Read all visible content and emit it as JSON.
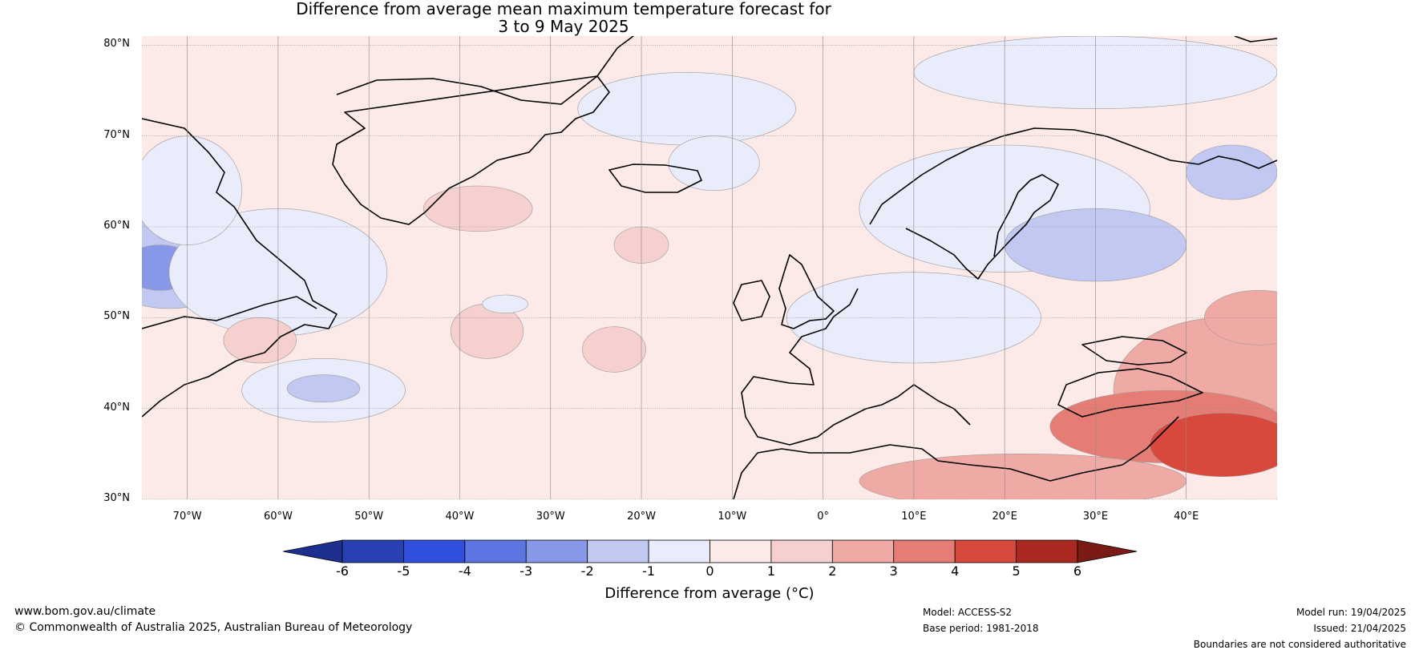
{
  "title_line1": "Difference from average mean maximum temperature forecast for",
  "title_line2": "3 to 9 May 2025",
  "map": {
    "lon_range": [
      -75,
      50
    ],
    "lat_range": [
      30,
      81
    ],
    "lat_ticks": [
      {
        "lat": 80,
        "label": "80°N"
      },
      {
        "lat": 70,
        "label": "70°N"
      },
      {
        "lat": 60,
        "label": "60°N"
      },
      {
        "lat": 50,
        "label": "50°N"
      },
      {
        "lat": 40,
        "label": "40°N"
      },
      {
        "lat": 30,
        "label": "30°N"
      }
    ],
    "lon_ticks": [
      {
        "lon": -70,
        "label": "70°W"
      },
      {
        "lon": -60,
        "label": "60°W"
      },
      {
        "lon": -50,
        "label": "50°W"
      },
      {
        "lon": -40,
        "label": "40°W"
      },
      {
        "lon": -30,
        "label": "30°W"
      },
      {
        "lon": -20,
        "label": "20°W"
      },
      {
        "lon": -10,
        "label": "10°W"
      },
      {
        "lon": 0,
        "label": "0°"
      },
      {
        "lon": 10,
        "label": "10°E"
      },
      {
        "lon": 20,
        "label": "20°E"
      },
      {
        "lon": 30,
        "label": "30°E"
      },
      {
        "lon": 40,
        "label": "40°E"
      }
    ],
    "anomaly_regions": [
      {
        "lon": -72,
        "lat": 56,
        "rlon": 8,
        "rlat": 5,
        "level": -2
      },
      {
        "lon": -73,
        "lat": 55.5,
        "rlon": 4,
        "rlat": 2.5,
        "level": -3
      },
      {
        "lon": -60,
        "lat": 55,
        "rlon": 12,
        "rlat": 7,
        "level": -1
      },
      {
        "lon": -70,
        "lat": 64,
        "rlon": 6,
        "rlat": 6,
        "level": -1
      },
      {
        "lon": -55,
        "lat": 42,
        "rlon": 9,
        "rlat": 3.5,
        "level": -1
      },
      {
        "lon": -55,
        "lat": 42.2,
        "rlon": 4,
        "rlat": 1.5,
        "level": -2
      },
      {
        "lon": -62,
        "lat": 47.5,
        "rlon": 4,
        "rlat": 2.5,
        "level": 1
      },
      {
        "lon": -37,
        "lat": 48.5,
        "rlon": 4,
        "rlat": 3,
        "level": 1
      },
      {
        "lon": -23,
        "lat": 46.5,
        "rlon": 3.5,
        "rlat": 2.5,
        "level": 1
      },
      {
        "lon": -38,
        "lat": 62,
        "rlon": 6,
        "rlat": 2.5,
        "level": 1
      },
      {
        "lon": -20,
        "lat": 58,
        "rlon": 3,
        "rlat": 2,
        "level": 1
      },
      {
        "lon": -35,
        "lat": 51.5,
        "rlon": 2.5,
        "rlat": 1,
        "level": -1
      },
      {
        "lon": -15,
        "lat": 73,
        "rlon": 12,
        "rlat": 4,
        "level": -1
      },
      {
        "lon": -12,
        "lat": 67,
        "rlon": 5,
        "rlat": 3,
        "level": -1
      },
      {
        "lon": 30,
        "lat": 77,
        "rlon": 20,
        "rlat": 4,
        "level": -1
      },
      {
        "lon": 20,
        "lat": 62,
        "rlon": 16,
        "rlat": 7,
        "level": -1
      },
      {
        "lon": 30,
        "lat": 58,
        "rlon": 10,
        "rlat": 4,
        "level": -2
      },
      {
        "lon": 45,
        "lat": 66,
        "rlon": 5,
        "rlat": 3,
        "level": -2
      },
      {
        "lon": 10,
        "lat": 50,
        "rlon": 14,
        "rlat": 5,
        "level": -1
      },
      {
        "lon": 44,
        "lat": 42,
        "rlon": 12,
        "rlat": 8,
        "level": 2
      },
      {
        "lon": 38,
        "lat": 38,
        "rlon": 13,
        "rlat": 4,
        "level": 3
      },
      {
        "lon": 44,
        "lat": 36,
        "rlon": 8,
        "rlat": 3.5,
        "level": 4
      },
      {
        "lon": 22,
        "lat": 32,
        "rlon": 18,
        "rlat": 3,
        "level": 2
      },
      {
        "lon": 48,
        "lat": 50,
        "rlon": 6,
        "rlat": 3,
        "level": 2
      }
    ]
  },
  "colorbar": {
    "levels": [
      -6,
      -5,
      -4,
      -3,
      -2,
      -1,
      0,
      1,
      2,
      3,
      4,
      5,
      6
    ],
    "colors": [
      "#1f2f8f",
      "#2741b5",
      "#2f4fde",
      "#5d74e3",
      "#8898e8",
      "#c1c9f3",
      "#e9ecfb",
      "#fbeae8",
      "#f5d0ce",
      "#efaaa5",
      "#e67d74",
      "#d8483c",
      "#a9281f",
      "#7b1a15"
    ],
    "label": "Difference from average (°C)"
  },
  "footer": {
    "website": "www.bom.gov.au/climate",
    "copyright": "© Commonwealth of Australia 2025, Australian Bureau of Meteorology",
    "model": "Model: ACCESS-S2",
    "base_period": "Base period: 1981-2018",
    "model_run": "Model run: 19/04/2025",
    "issued": "Issued: 21/04/2025",
    "disclaimer": "Boundaries are not considered authoritative"
  }
}
